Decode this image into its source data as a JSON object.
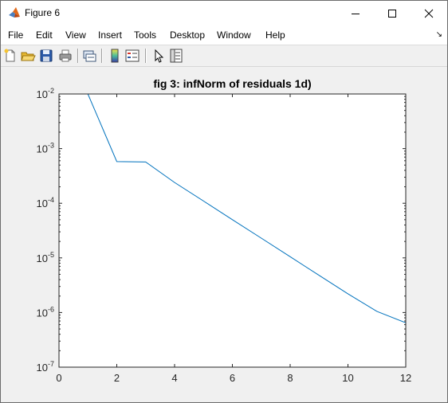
{
  "window": {
    "title": "Figure 6"
  },
  "menubar": {
    "items": [
      "File",
      "Edit",
      "View",
      "Insert",
      "Tools",
      "Desktop",
      "Window",
      "Help"
    ]
  },
  "toolbar": {
    "buttons": [
      "new-figure-icon",
      "open-file-icon",
      "save-icon",
      "print-icon",
      "link-plot-icon",
      "insert-colorbar-icon",
      "insert-legend-icon",
      "edit-plot-icon",
      "property-inspector-icon"
    ]
  },
  "chart_data": {
    "type": "line",
    "title": "fig 3: infNorm of residuals 1d)",
    "xlabel": "",
    "ylabel": "",
    "xlim": [
      0,
      12
    ],
    "ylim": [
      1e-07,
      0.01
    ],
    "yscale": "log",
    "grid": false,
    "x_ticks": [
      "0",
      "2",
      "4",
      "6",
      "8",
      "10",
      "12"
    ],
    "y_tick_exponents": [
      "-2",
      "-3",
      "-4",
      "-5",
      "-6",
      "-7"
    ],
    "y_tick_base": "10",
    "series_color": "#0072bd",
    "series": [
      {
        "x": [
          1,
          2,
          3,
          4,
          5,
          6,
          7,
          8,
          9,
          10,
          11,
          12
        ],
        "values": [
          0.0105,
          0.00058,
          0.00057,
          0.00024,
          0.00011,
          5e-05,
          2.3e-05,
          1.05e-05,
          4.8e-06,
          2.2e-06,
          1.05e-06,
          6.5e-07
        ]
      }
    ]
  }
}
